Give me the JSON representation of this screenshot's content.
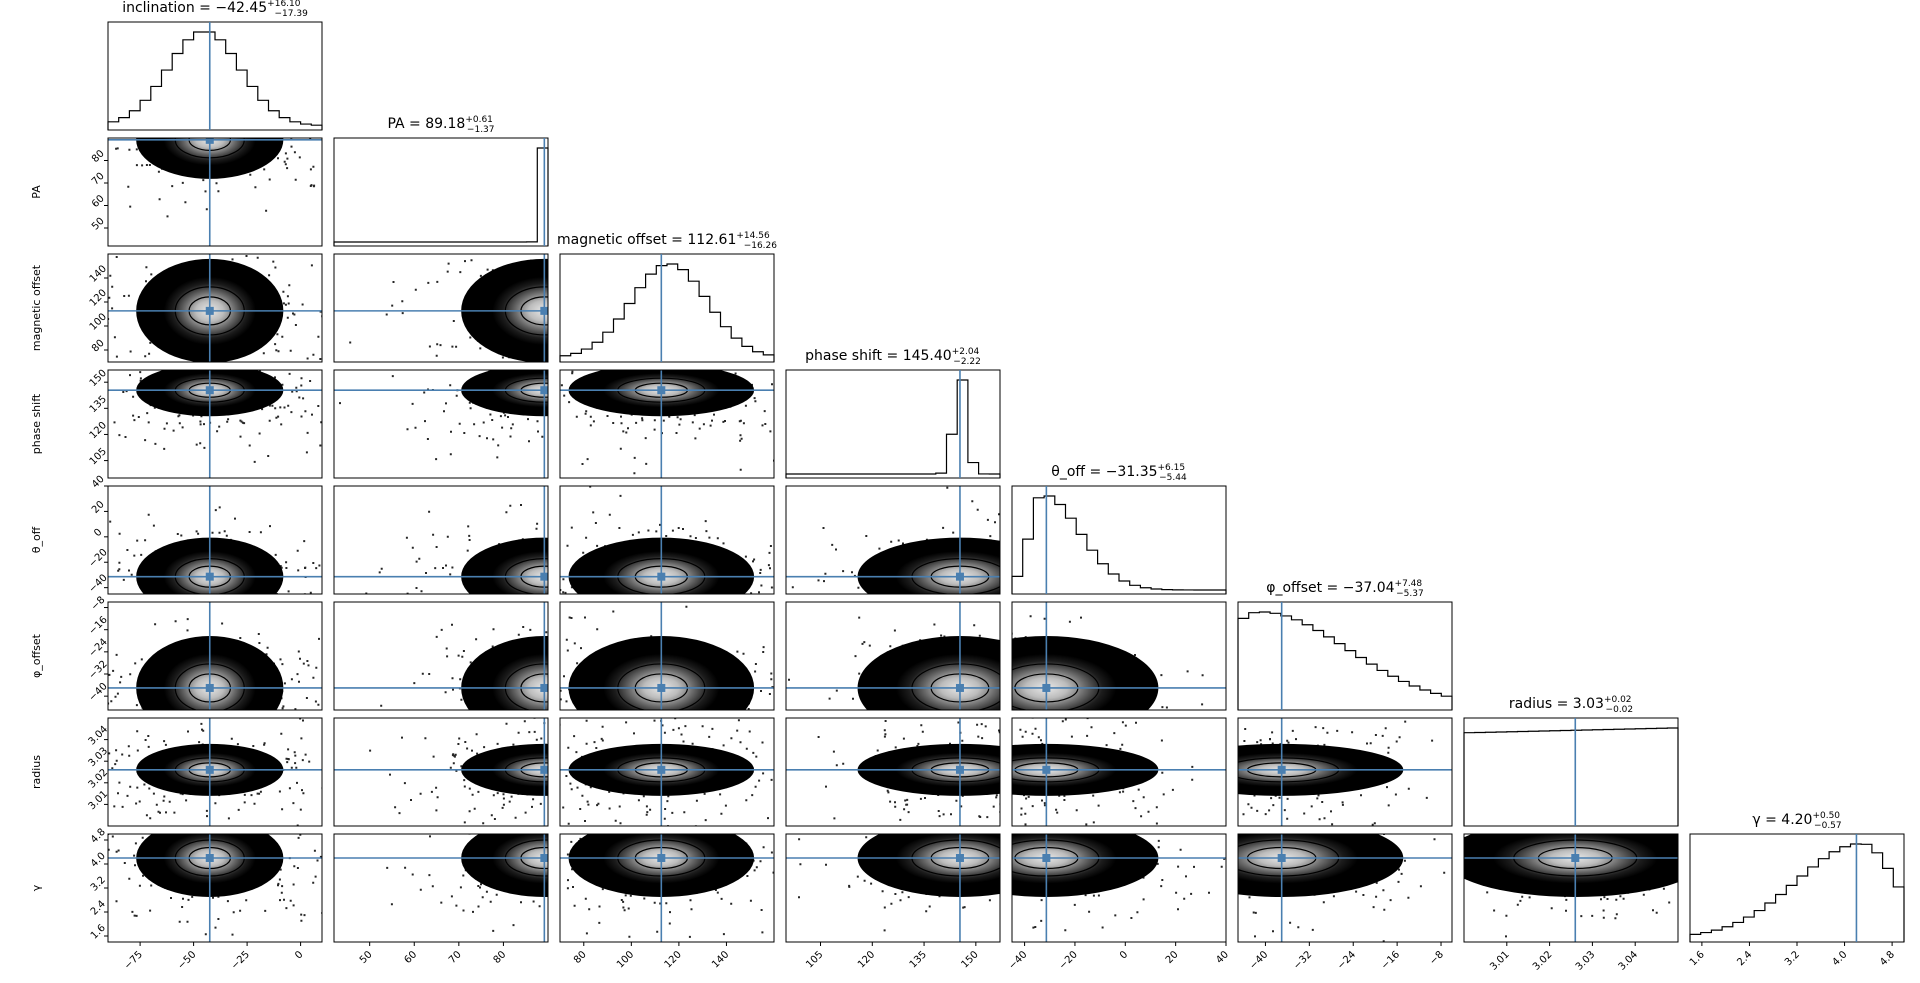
{
  "chart_data": {
    "type": "corner",
    "truth_color": "#4a7fb0",
    "parameters": [
      {
        "name": "inclination",
        "range": [
          -90,
          10
        ],
        "truth": -42.45,
        "median": "−42.45",
        "plus": "+16.10",
        "minus": "−17.39",
        "ticks": [
          -75,
          -50,
          -25,
          0
        ],
        "tick_labels": [
          "−75",
          "−50",
          "−25",
          "0"
        ],
        "hist_mu": -45,
        "hist_sigma": 17,
        "hist_skew": 0
      },
      {
        "name": "PA",
        "range": [
          42,
          90
        ],
        "truth": 89.18,
        "median": "89.18",
        "plus": "+0.61",
        "minus": "−1.37",
        "ticks": [
          50,
          60,
          70,
          80
        ],
        "tick_labels": [
          "50",
          "60",
          "70",
          "80"
        ],
        "hist_mu": 88.6,
        "hist_sigma": 0.6,
        "hist_skew": 0
      },
      {
        "name": "magnetic offset",
        "range": [
          70,
          160
        ],
        "truth": 112.61,
        "median": "112.61",
        "plus": "+14.56",
        "minus": "−16.26",
        "ticks": [
          80,
          100,
          120,
          140
        ],
        "tick_labels": [
          "80",
          "100",
          "120",
          "140"
        ],
        "hist_mu": 116,
        "hist_sigma": 16,
        "hist_skew": 0
      },
      {
        "name": "phase shift",
        "range": [
          95,
          157
        ],
        "truth": 145.4,
        "median": "145.40",
        "plus": "+2.04",
        "minus": "−2.22",
        "ticks": [
          105,
          120,
          135,
          150
        ],
        "tick_labels": [
          "105",
          "120",
          "135",
          "150"
        ],
        "hist_mu": 145.5,
        "hist_sigma": 1.8,
        "hist_skew": 0
      },
      {
        "name": "θ_off",
        "range": [
          -45,
          40
        ],
        "truth": -31.35,
        "median": "−31.35",
        "plus": "+6.15",
        "minus": "−5.44",
        "ticks": [
          -40,
          -20,
          0,
          20,
          40
        ],
        "tick_labels": [
          "−40",
          "−20",
          "0",
          "20",
          "40"
        ],
        "hist_mu": -33,
        "hist_sigma": 5,
        "hist_skew": 3
      },
      {
        "name": "φ_offset",
        "range": [
          -45,
          -6
        ],
        "truth": -37.04,
        "median": "−37.04",
        "plus": "+7.48",
        "minus": "−5.37",
        "ticks": [
          -40,
          -32,
          -24,
          -16,
          -8
        ],
        "tick_labels": [
          "−40",
          "−32",
          "−24",
          "−16",
          "−8"
        ],
        "hist_mu": -41,
        "hist_sigma": 8,
        "hist_skew": 2
      },
      {
        "name": "radius",
        "range": [
          3.0,
          3.05
        ],
        "truth": 3.026,
        "median": "3.03",
        "plus": "+0.02",
        "minus": "−0.02",
        "ticks": [
          3.01,
          3.02,
          3.03,
          3.04
        ],
        "tick_labels": [
          "3.01",
          "3.02",
          "3.03",
          "3.04"
        ],
        "hist_mu": 3.025,
        "hist_sigma": 0.2,
        "hist_skew": 0
      },
      {
        "name": "γ",
        "range": [
          1.4,
          5.0
        ],
        "truth": 4.2,
        "median": "4.20",
        "plus": "+0.50",
        "minus": "−0.57",
        "ticks": [
          1.6,
          2.4,
          3.2,
          4.0,
          4.8
        ],
        "tick_labels": [
          "1.6",
          "2.4",
          "3.2",
          "4.0",
          "4.8"
        ],
        "hist_mu": 4.3,
        "hist_sigma": 0.55,
        "hist_skew": -2
      }
    ]
  }
}
